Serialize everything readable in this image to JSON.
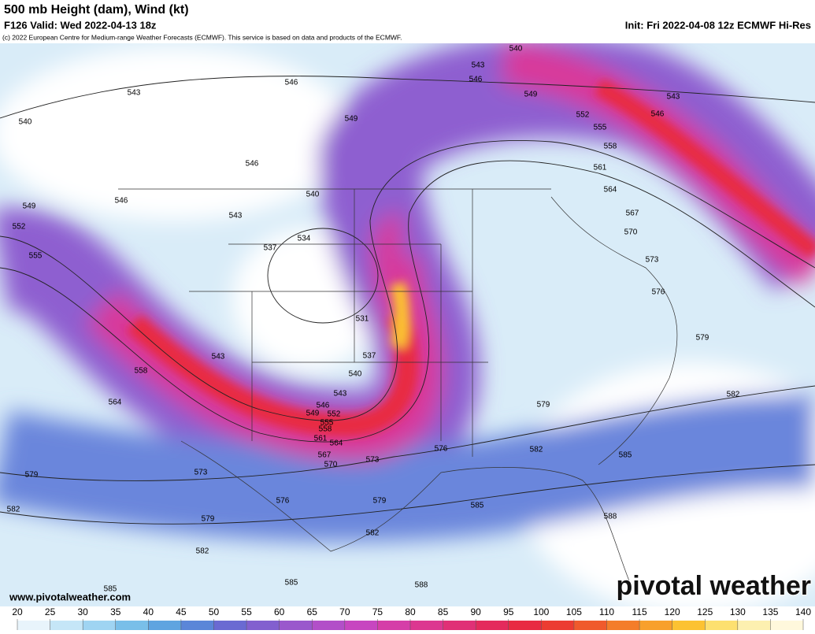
{
  "header": {
    "title": "500 mb Height (dam), Wind (kt)",
    "valid": "F126 Valid: Wed 2022-04-13 18z",
    "init": "Init: Fri 2022-04-08 12z ECMWF Hi-Res",
    "copyright": "(c) 2022 European Centre for Medium-range Weather Forecasts (ECMWF). This service is based on data and products of the ECMWF."
  },
  "contour_labels": [
    540,
    543,
    546,
    546,
    543,
    549,
    543,
    552,
    546,
    540,
    549,
    555,
    558,
    546,
    561,
    564,
    540,
    546,
    549,
    543,
    567,
    570,
    552,
    534,
    537,
    573,
    555,
    576,
    531,
    579,
    537,
    543,
    558,
    540,
    543,
    582,
    564,
    546,
    549,
    552,
    555,
    558,
    579,
    561,
    564,
    576,
    582,
    567,
    573,
    585,
    570,
    579,
    573,
    576,
    579,
    585,
    582,
    579,
    588,
    582,
    582,
    585,
    585,
    588
  ],
  "colorbar": {
    "ticks": [
      20,
      25,
      30,
      35,
      40,
      45,
      50,
      55,
      60,
      65,
      70,
      75,
      80,
      85,
      90,
      95,
      100,
      105,
      110,
      115,
      120,
      125,
      130,
      135,
      140
    ],
    "colors": [
      "#e8f4fb",
      "#c5e6f7",
      "#9fd4f2",
      "#79bfe9",
      "#5fa4e0",
      "#5b86d8",
      "#6a6ad2",
      "#8260cf",
      "#9a58cc",
      "#b24fc8",
      "#c746c0",
      "#d53ea8",
      "#dc3790",
      "#e03076",
      "#e42a5c",
      "#e82a42",
      "#ec3c32",
      "#f05a2c",
      "#f47d2a",
      "#f8a02c",
      "#fcc232",
      "#fde070",
      "#fdf0b0",
      "#fff8dc"
    ]
  },
  "footer": {
    "url": "www.pivotalweather.com",
    "brand": "pivotal weather"
  }
}
